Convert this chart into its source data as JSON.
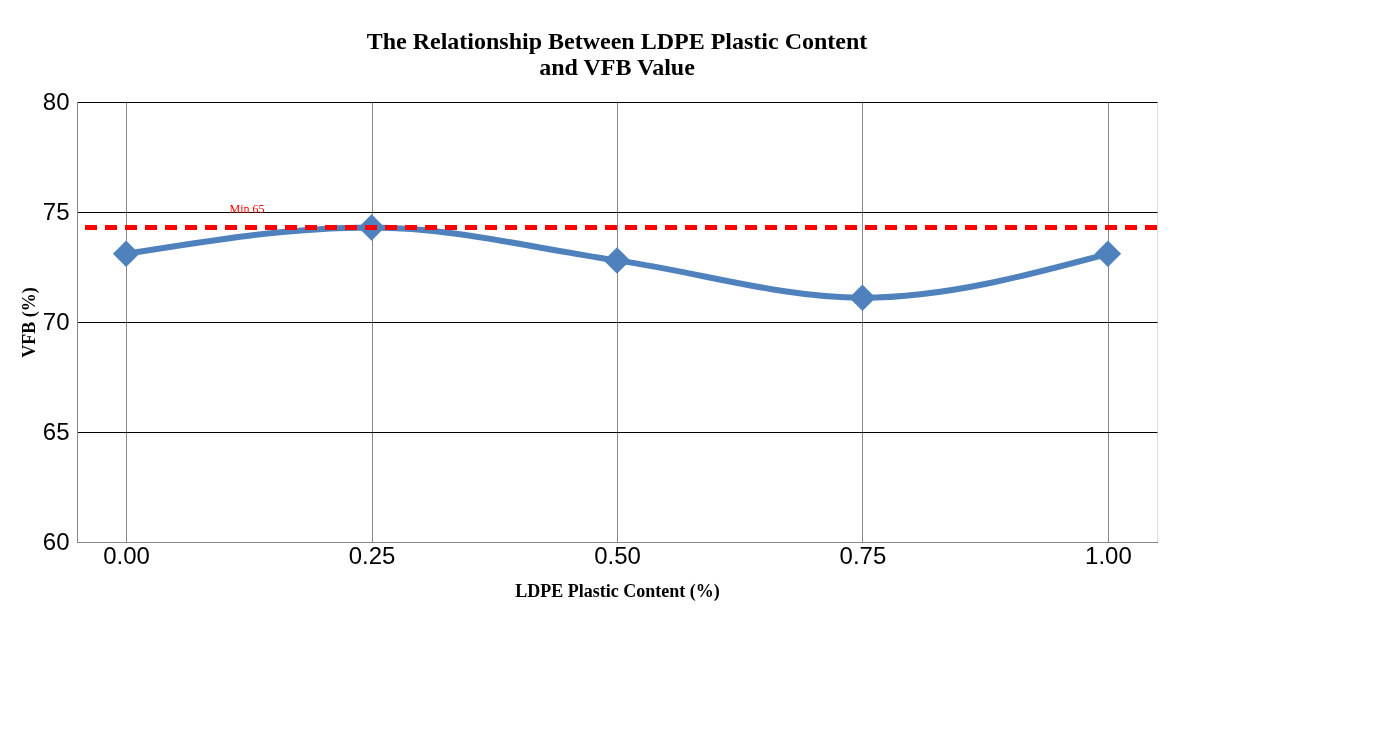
{
  "chart_data": {
    "type": "line",
    "title": [
      "The Relationship Between LDPE Plastic Content",
      "and VFB Value"
    ],
    "xlabel": "LDPE Plastic Content (%)",
    "ylabel": "VFB (%)",
    "categories": [
      "0.00",
      "0.25",
      "0.50",
      "0.75",
      "1.00"
    ],
    "series": [
      {
        "color": "#4f81bd",
        "values": [
          73.1,
          74.3,
          72.8,
          71.1,
          73.1
        ]
      }
    ],
    "ylim": [
      60,
      80
    ],
    "yticks": [
      60,
      65,
      70,
      75,
      80
    ],
    "grid": true,
    "marker": "diamond",
    "line_style": "solid",
    "ref_lines": [
      {
        "axis": "y",
        "value": 74.3,
        "label": "Min 65",
        "color": "#ff0000",
        "line_style": "dashed"
      }
    ]
  }
}
